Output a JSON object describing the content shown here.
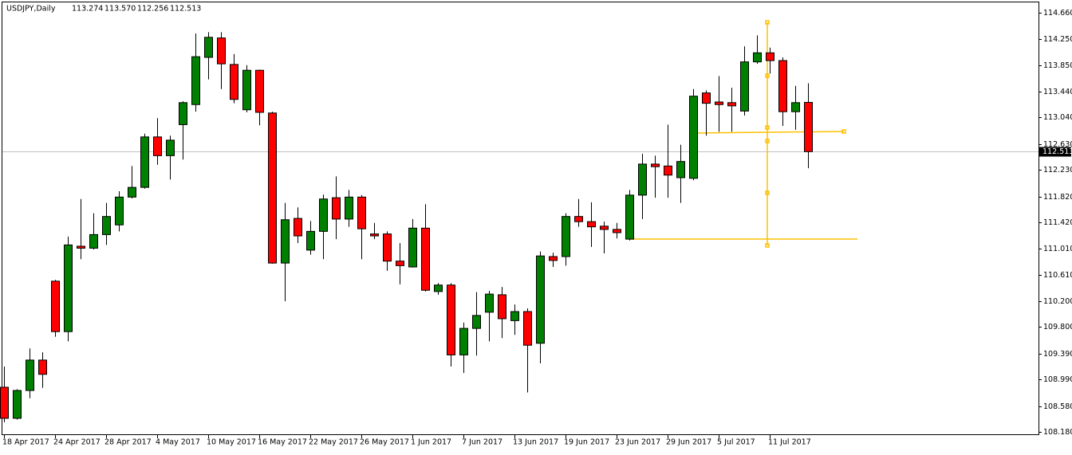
{
  "chart_data": {
    "type": "candlestick",
    "symbol": "USDJPY,Daily",
    "ohlc_labels": [
      "113.274",
      "113.570",
      "112.256",
      "112.513"
    ],
    "categories": [
      "18 Apr 2017",
      null,
      null,
      null,
      "24 Apr 2017",
      null,
      null,
      null,
      "28 Apr 2017",
      null,
      null,
      null,
      "4 May 2017",
      null,
      null,
      null,
      "10 May 2017",
      null,
      null,
      null,
      "16 May 2017",
      null,
      null,
      null,
      "22 May 2017",
      null,
      null,
      null,
      "26 May 2017",
      null,
      null,
      null,
      "1 Jun 2017",
      null,
      null,
      null,
      "7 Jun 2017",
      null,
      null,
      null,
      "13 Jun 2017",
      null,
      null,
      null,
      "19 Jun 2017",
      null,
      null,
      null,
      "23 Jun 2017",
      null,
      null,
      null,
      "29 Jun 2017",
      null,
      null,
      null,
      "5 Jul 2017",
      null,
      null,
      null,
      "11 Jul 2017",
      null,
      null,
      null
    ],
    "open": [
      108.87,
      108.39,
      108.82,
      109.29,
      110.51,
      109.73,
      111.05,
      111.02,
      111.23,
      111.38,
      111.81,
      111.96,
      112.74,
      112.45,
      112.93,
      113.24,
      113.97,
      114.27,
      113.86,
      113.16,
      113.77,
      113.11,
      110.79,
      111.48,
      110.99,
      111.28,
      111.8,
      111.47,
      111.81,
      111.24,
      111.24,
      110.82,
      110.73,
      111.33,
      110.35,
      110.45,
      109.37,
      109.78,
      110.03,
      110.3,
      109.9,
      110.04,
      109.55,
      110.89,
      110.89,
      111.51,
      111.43,
      111.36,
      111.31,
      111.16,
      111.84,
      112.32,
      112.29,
      112.11,
      112.1,
      113.42,
      113.28,
      113.27,
      113.14,
      113.9,
      114.04,
      113.92,
      113.13,
      113.274
    ],
    "high": [
      109.19,
      108.84,
      109.47,
      109.41,
      110.53,
      111.2,
      111.78,
      111.56,
      111.72,
      111.9,
      112.29,
      112.79,
      113.03,
      112.76,
      113.29,
      114.34,
      114.36,
      114.36,
      114.02,
      113.85,
      113.78,
      113.13,
      111.72,
      111.65,
      111.44,
      111.85,
      112.13,
      111.92,
      111.84,
      111.41,
      111.28,
      111.1,
      111.47,
      111.7,
      110.48,
      110.48,
      109.87,
      110.34,
      110.36,
      110.42,
      110.15,
      110.09,
      110.97,
      110.95,
      111.56,
      111.78,
      111.73,
      111.43,
      111.41,
      111.92,
      112.48,
      112.45,
      112.93,
      112.62,
      113.48,
      113.46,
      113.68,
      113.5,
      114.14,
      114.31,
      114.12,
      113.97,
      113.53,
      113.57
    ],
    "low": [
      108.33,
      108.37,
      108.7,
      108.86,
      109.65,
      109.58,
      110.85,
      111.0,
      111.07,
      111.28,
      111.79,
      111.94,
      112.31,
      112.08,
      112.39,
      113.13,
      113.63,
      113.48,
      113.26,
      113.12,
      112.92,
      110.78,
      110.2,
      111.1,
      110.92,
      110.85,
      111.16,
      111.35,
      110.85,
      111.16,
      110.67,
      110.46,
      110.72,
      110.35,
      110.3,
      109.19,
      109.09,
      109.36,
      109.58,
      109.63,
      109.68,
      108.79,
      109.24,
      110.73,
      110.75,
      111.35,
      111.04,
      110.94,
      111.17,
      111.14,
      111.47,
      111.8,
      111.8,
      111.72,
      112.07,
      112.76,
      112.82,
      112.82,
      113.07,
      113.87,
      113.72,
      112.91,
      112.85,
      112.256
    ],
    "close": [
      108.39,
      108.82,
      109.29,
      109.07,
      109.73,
      111.07,
      111.02,
      111.23,
      111.51,
      111.81,
      111.96,
      112.74,
      112.45,
      112.69,
      113.27,
      113.98,
      114.28,
      113.87,
      113.32,
      113.77,
      113.12,
      110.79,
      111.46,
      111.21,
      111.28,
      111.78,
      111.47,
      111.81,
      111.32,
      111.21,
      110.82,
      110.75,
      111.33,
      110.37,
      110.45,
      109.37,
      109.78,
      109.98,
      110.31,
      109.93,
      110.04,
      109.52,
      110.9,
      110.83,
      111.51,
      111.43,
      111.35,
      111.31,
      111.26,
      111.84,
      112.32,
      112.28,
      112.15,
      112.36,
      113.37,
      113.26,
      113.24,
      113.22,
      113.9,
      114.04,
      113.92,
      113.13,
      113.27,
      112.513
    ],
    "up_color": "#008000",
    "down_color": "#ff0000",
    "last_price": 112.513,
    "ylim": [
      108.143,
      114.832
    ],
    "yticks": [
      {
        "value": 114.66,
        "label": "114.660"
      },
      {
        "value": 114.25,
        "label": "114.250"
      },
      {
        "value": 113.85,
        "label": "113.850"
      },
      {
        "value": 113.44,
        "label": "113.440"
      },
      {
        "value": 113.04,
        "label": "113.040"
      },
      {
        "value": 112.63,
        "label": "112.630"
      },
      {
        "value": 112.23,
        "label": "112.230"
      },
      {
        "value": 111.82,
        "label": "111.820"
      },
      {
        "value": 111.42,
        "label": "111.420"
      },
      {
        "value": 111.01,
        "label": "111.010"
      },
      {
        "value": 110.61,
        "label": "110.610"
      },
      {
        "value": 110.2,
        "label": "110.200"
      },
      {
        "value": 109.8,
        "label": "109.800"
      },
      {
        "value": 109.39,
        "label": "109.390"
      },
      {
        "value": 108.99,
        "label": "108.990"
      },
      {
        "value": 108.58,
        "label": "108.580"
      },
      {
        "value": 108.18,
        "label": "108.180"
      }
    ]
  }
}
